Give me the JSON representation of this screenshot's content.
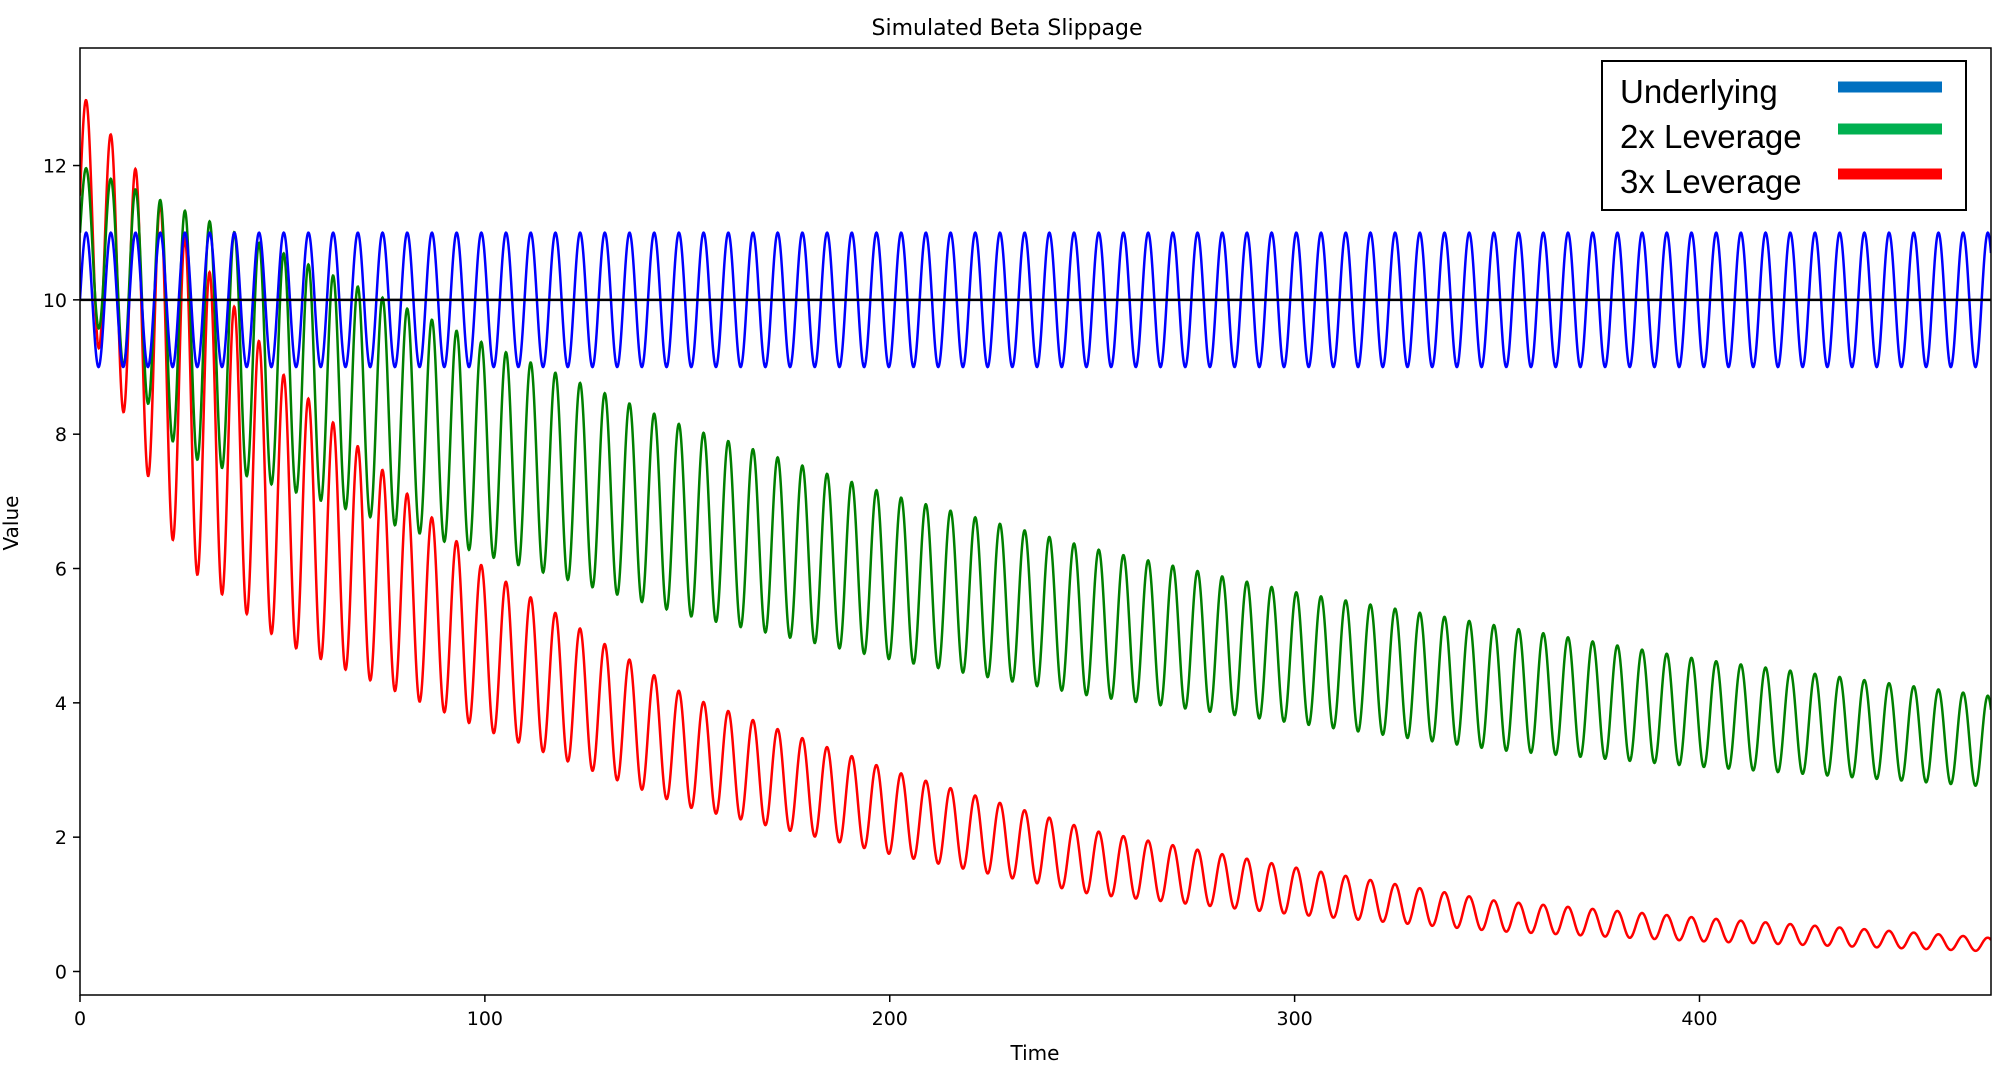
{
  "chart_data": {
    "type": "line",
    "title": "Simulated Beta Slippage",
    "xlabel": "Time",
    "ylabel": "Value",
    "xlim": [
      0,
      472
    ],
    "ylim": [
      -0.35,
      13.75
    ],
    "x_ticks": [
      0,
      100,
      200,
      300,
      400
    ],
    "y_ticks": [
      0,
      2,
      4,
      6,
      8,
      10,
      12
    ],
    "grid": false,
    "legend_position": "top-right",
    "reference_line": {
      "y": 10,
      "color": "#000000"
    },
    "period": 6.1,
    "series": [
      {
        "name": "Underlying",
        "color": "#0000ff",
        "legend_color": "#0070c0",
        "description": "oscillates between 9 and 11 around 10",
        "values": [
          {
            "x": 0,
            "min": 9.0,
            "max": 11.0
          },
          {
            "x": 472,
            "min": 9.0,
            "max": 11.0
          }
        ]
      },
      {
        "name": "2x Leverage",
        "color": "#008000",
        "legend_color": "#00b050",
        "values": [
          {
            "x": 0,
            "min": 10.0,
            "max": 12.0
          },
          {
            "x": 25,
            "min": 7.7,
            "max": 11.35
          },
          {
            "x": 50,
            "min": 7.2,
            "max": 10.7
          },
          {
            "x": 100,
            "min": 6.2,
            "max": 9.35
          },
          {
            "x": 150,
            "min": 5.3,
            "max": 8.1
          },
          {
            "x": 200,
            "min": 4.65,
            "max": 7.1
          },
          {
            "x": 250,
            "min": 4.1,
            "max": 6.3
          },
          {
            "x": 300,
            "min": 3.7,
            "max": 5.65
          },
          {
            "x": 350,
            "min": 3.3,
            "max": 5.15
          },
          {
            "x": 400,
            "min": 3.05,
            "max": 4.65
          },
          {
            "x": 472,
            "min": 2.75,
            "max": 4.1
          }
        ]
      },
      {
        "name": "3x Leverage",
        "color": "#ff0000",
        "legend_color": "#ff0000",
        "values": [
          {
            "x": 0,
            "min": 10.0,
            "max": 13.1
          },
          {
            "x": 25,
            "min": 6.1,
            "max": 11.0
          },
          {
            "x": 50,
            "min": 4.9,
            "max": 8.9
          },
          {
            "x": 100,
            "min": 3.6,
            "max": 6.0
          },
          {
            "x": 150,
            "min": 2.45,
            "max": 4.1
          },
          {
            "x": 200,
            "min": 1.75,
            "max": 3.0
          },
          {
            "x": 250,
            "min": 1.15,
            "max": 2.1
          },
          {
            "x": 300,
            "min": 0.85,
            "max": 1.55
          },
          {
            "x": 350,
            "min": 0.6,
            "max": 1.05
          },
          {
            "x": 400,
            "min": 0.45,
            "max": 0.8
          },
          {
            "x": 472,
            "min": 0.3,
            "max": 0.5
          }
        ]
      }
    ]
  }
}
